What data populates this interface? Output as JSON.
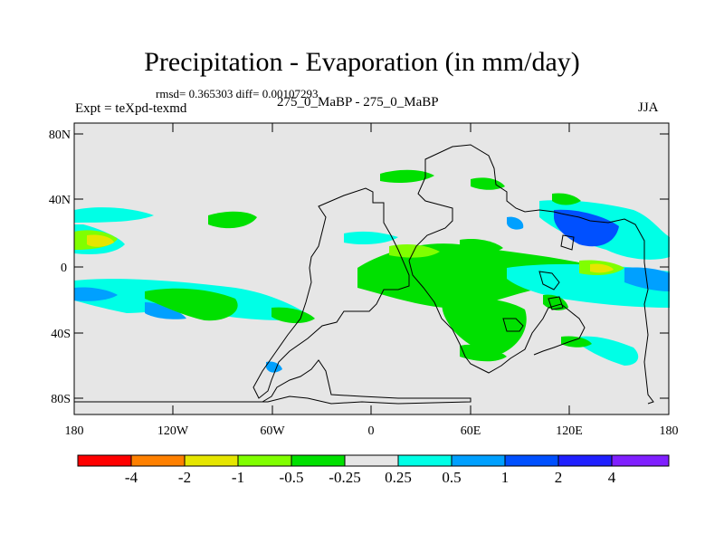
{
  "title": "Precipitation - Evaporation (in mm/day)",
  "stats": "rmsd= 0.365303 diff= 0.00107293",
  "experiment": "Expt = teXpd-texmd",
  "case": "275_0_MaBP - 275_0_MaBP",
  "season": "JJA",
  "map": {
    "lat_labels": [
      "80N",
      "40N",
      "0",
      "40S",
      "80S"
    ],
    "lon_labels": [
      "180",
      "120W",
      "60W",
      "0",
      "60E",
      "120E",
      "180"
    ]
  },
  "legend": {
    "labels": [
      "-4",
      "-2",
      "-1",
      "-0.5",
      "-0.25",
      "0.25",
      "0.5",
      "1",
      "2",
      "4"
    ],
    "colors": [
      "#ff0000",
      "#ff8000",
      "#e6e600",
      "#80ff00",
      "#00e000",
      "#e6e6e6",
      "#00ffe6",
      "#00a0ff",
      "#0050ff",
      "#2020ff",
      "#8020ff"
    ]
  },
  "palette": {
    "background": "#e6e6e6",
    "coast": "#000000"
  }
}
